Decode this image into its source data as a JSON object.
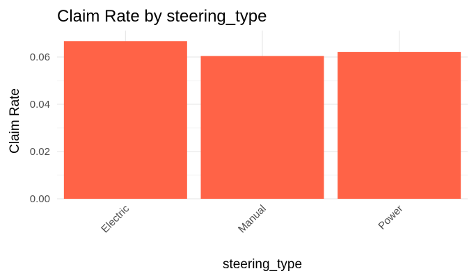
{
  "chart_data": {
    "type": "bar",
    "title": "Claim Rate by steering_type",
    "xlabel": "steering_type",
    "ylabel": "Claim Rate",
    "categories": [
      "Electric",
      "Manual",
      "Power"
    ],
    "values": [
      0.0667,
      0.0604,
      0.0621
    ],
    "ylim": [
      0,
      0.07
    ],
    "yticks": [
      0,
      0.02,
      0.04,
      0.06
    ],
    "ytick_labels": [
      "0.00",
      "0.02",
      "0.04",
      "0.06"
    ],
    "grid": true,
    "legend": "none",
    "bar_color": "#FF6347"
  }
}
